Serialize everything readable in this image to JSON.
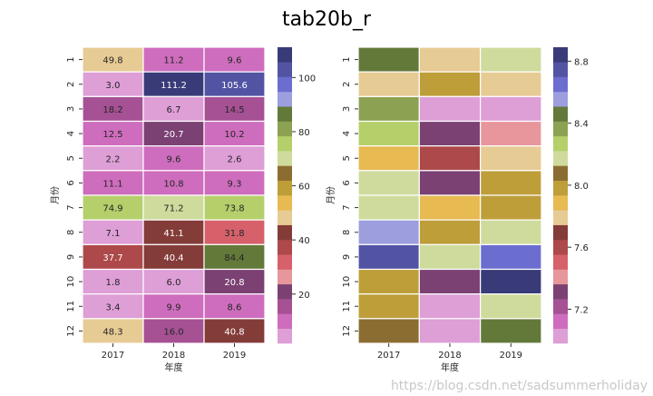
{
  "title": "tab20b_r",
  "watermark": "https://blog.csdn.net/sadsummerholiday",
  "colormap": [
    "#de9ed6",
    "#ce6dbd",
    "#a55194",
    "#7b4173",
    "#e7969c",
    "#d6616b",
    "#ad494a",
    "#843c39",
    "#e7cb94",
    "#e7ba52",
    "#bd9e39",
    "#8c6d31",
    "#cedb9c",
    "#b5cf6b",
    "#8ca252",
    "#637939",
    "#9c9ede",
    "#6b6ecf",
    "#5254a3",
    "#393b79"
  ],
  "chart_data": [
    {
      "type": "heatmap",
      "xlabel": "年度",
      "ylabel": "月份",
      "x": [
        "2017",
        "2018",
        "2019"
      ],
      "y": [
        "1",
        "2",
        "3",
        "4",
        "5",
        "6",
        "7",
        "8",
        "9",
        "10",
        "11",
        "12"
      ],
      "annotated": true,
      "values": [
        [
          49.8,
          11.2,
          9.6
        ],
        [
          3.0,
          111.2,
          105.6
        ],
        [
          18.2,
          6.7,
          14.5
        ],
        [
          12.5,
          20.7,
          10.2
        ],
        [
          2.2,
          9.6,
          2.6
        ],
        [
          11.1,
          10.8,
          9.3
        ],
        [
          74.9,
          71.2,
          73.8
        ],
        [
          7.1,
          41.1,
          31.8
        ],
        [
          37.7,
          40.4,
          84.4
        ],
        [
          1.8,
          6.0,
          20.8
        ],
        [
          3.4,
          9.9,
          8.6
        ],
        [
          48.3,
          16.0,
          40.8
        ]
      ],
      "vmin": 1.8,
      "vmax": 111.2,
      "colorbar_ticks": [
        "20",
        "40",
        "60",
        "80",
        "100"
      ]
    },
    {
      "type": "heatmap",
      "xlabel": "年度",
      "ylabel": "月份",
      "x": [
        "2017",
        "2018",
        "2019"
      ],
      "y": [
        "1",
        "2",
        "3",
        "4",
        "5",
        "6",
        "7",
        "8",
        "9",
        "10",
        "11",
        "12"
      ],
      "annotated": false,
      "values": [
        [
          8.46,
          7.79,
          8.17
        ],
        [
          7.79,
          7.98,
          7.79
        ],
        [
          8.36,
          7.02,
          7.02
        ],
        [
          8.27,
          7.31,
          7.41
        ],
        [
          7.89,
          7.6,
          7.79
        ],
        [
          8.17,
          7.31,
          7.98
        ],
        [
          8.17,
          7.89,
          7.98
        ],
        [
          8.55,
          7.98,
          8.17
        ],
        [
          8.74,
          8.17,
          8.65
        ],
        [
          7.98,
          7.31,
          8.84
        ],
        [
          7.98,
          7.02,
          8.17
        ],
        [
          8.08,
          7.02,
          8.46
        ]
      ],
      "vmin": 6.98,
      "vmax": 8.89,
      "colorbar_ticks": [
        "7.2",
        "7.6",
        "8.0",
        "8.4",
        "8.8"
      ]
    }
  ]
}
